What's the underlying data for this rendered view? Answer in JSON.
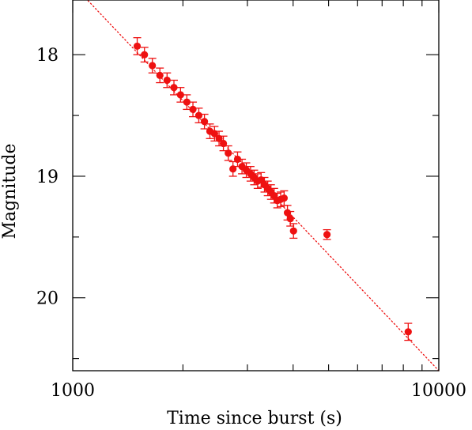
{
  "chart_data": {
    "type": "scatter",
    "title": "",
    "xlabel": "Time since burst (s)",
    "ylabel": "Magnitude",
    "x_scale": "log",
    "xlim": [
      1000,
      10000
    ],
    "ylim": [
      20.6,
      17.55
    ],
    "y_inverted": true,
    "grid": false,
    "legend": "none",
    "colors": {
      "points": "#ee1111",
      "errorbars": "#ee1111",
      "fit": "#ee1111",
      "axes": "#000000"
    },
    "x_ticks": {
      "labels": [
        1000,
        10000
      ]
    },
    "y_ticks": {
      "labels": [
        18,
        19,
        20
      ]
    },
    "fit_line": {
      "style": "dotted",
      "points": [
        {
          "x": 1020,
          "y": 17.45
        },
        {
          "x": 10000,
          "y": 20.6
        }
      ]
    },
    "series": [
      {
        "marker": "filled-circle",
        "points": [
          {
            "x": 1500,
            "y": 17.93,
            "err": 0.07
          },
          {
            "x": 1570,
            "y": 18.0,
            "err": 0.06
          },
          {
            "x": 1650,
            "y": 18.09,
            "err": 0.06
          },
          {
            "x": 1730,
            "y": 18.17,
            "err": 0.06
          },
          {
            "x": 1810,
            "y": 18.21,
            "err": 0.06
          },
          {
            "x": 1890,
            "y": 18.27,
            "err": 0.06
          },
          {
            "x": 1970,
            "y": 18.33,
            "err": 0.06
          },
          {
            "x": 2050,
            "y": 18.39,
            "err": 0.06
          },
          {
            "x": 2130,
            "y": 18.45,
            "err": 0.06
          },
          {
            "x": 2210,
            "y": 18.5,
            "err": 0.06
          },
          {
            "x": 2290,
            "y": 18.55,
            "err": 0.06
          },
          {
            "x": 2370,
            "y": 18.63,
            "err": 0.06
          },
          {
            "x": 2440,
            "y": 18.65,
            "err": 0.06
          },
          {
            "x": 2510,
            "y": 18.69,
            "err": 0.06
          },
          {
            "x": 2580,
            "y": 18.73,
            "err": 0.06
          },
          {
            "x": 2660,
            "y": 18.81,
            "err": 0.06
          },
          {
            "x": 2740,
            "y": 18.94,
            "err": 0.06
          },
          {
            "x": 2820,
            "y": 18.86,
            "err": 0.06
          },
          {
            "x": 2900,
            "y": 18.92,
            "err": 0.06
          },
          {
            "x": 2980,
            "y": 18.95,
            "err": 0.06
          },
          {
            "x": 3060,
            "y": 18.98,
            "err": 0.06
          },
          {
            "x": 3130,
            "y": 19.01,
            "err": 0.06
          },
          {
            "x": 3200,
            "y": 19.04,
            "err": 0.06
          },
          {
            "x": 3270,
            "y": 19.03,
            "err": 0.06
          },
          {
            "x": 3340,
            "y": 19.07,
            "err": 0.06
          },
          {
            "x": 3410,
            "y": 19.1,
            "err": 0.06
          },
          {
            "x": 3480,
            "y": 19.13,
            "err": 0.06
          },
          {
            "x": 3550,
            "y": 19.16,
            "err": 0.06
          },
          {
            "x": 3620,
            "y": 19.2,
            "err": 0.06
          },
          {
            "x": 3700,
            "y": 19.19,
            "err": 0.06
          },
          {
            "x": 3780,
            "y": 19.18,
            "err": 0.06
          },
          {
            "x": 3860,
            "y": 19.3,
            "err": 0.06
          },
          {
            "x": 3930,
            "y": 19.35,
            "err": 0.06
          },
          {
            "x": 4010,
            "y": 19.45,
            "err": 0.06
          },
          {
            "x": 4950,
            "y": 19.48,
            "err": 0.04
          },
          {
            "x": 8250,
            "y": 20.28,
            "err": 0.07
          }
        ]
      }
    ]
  }
}
